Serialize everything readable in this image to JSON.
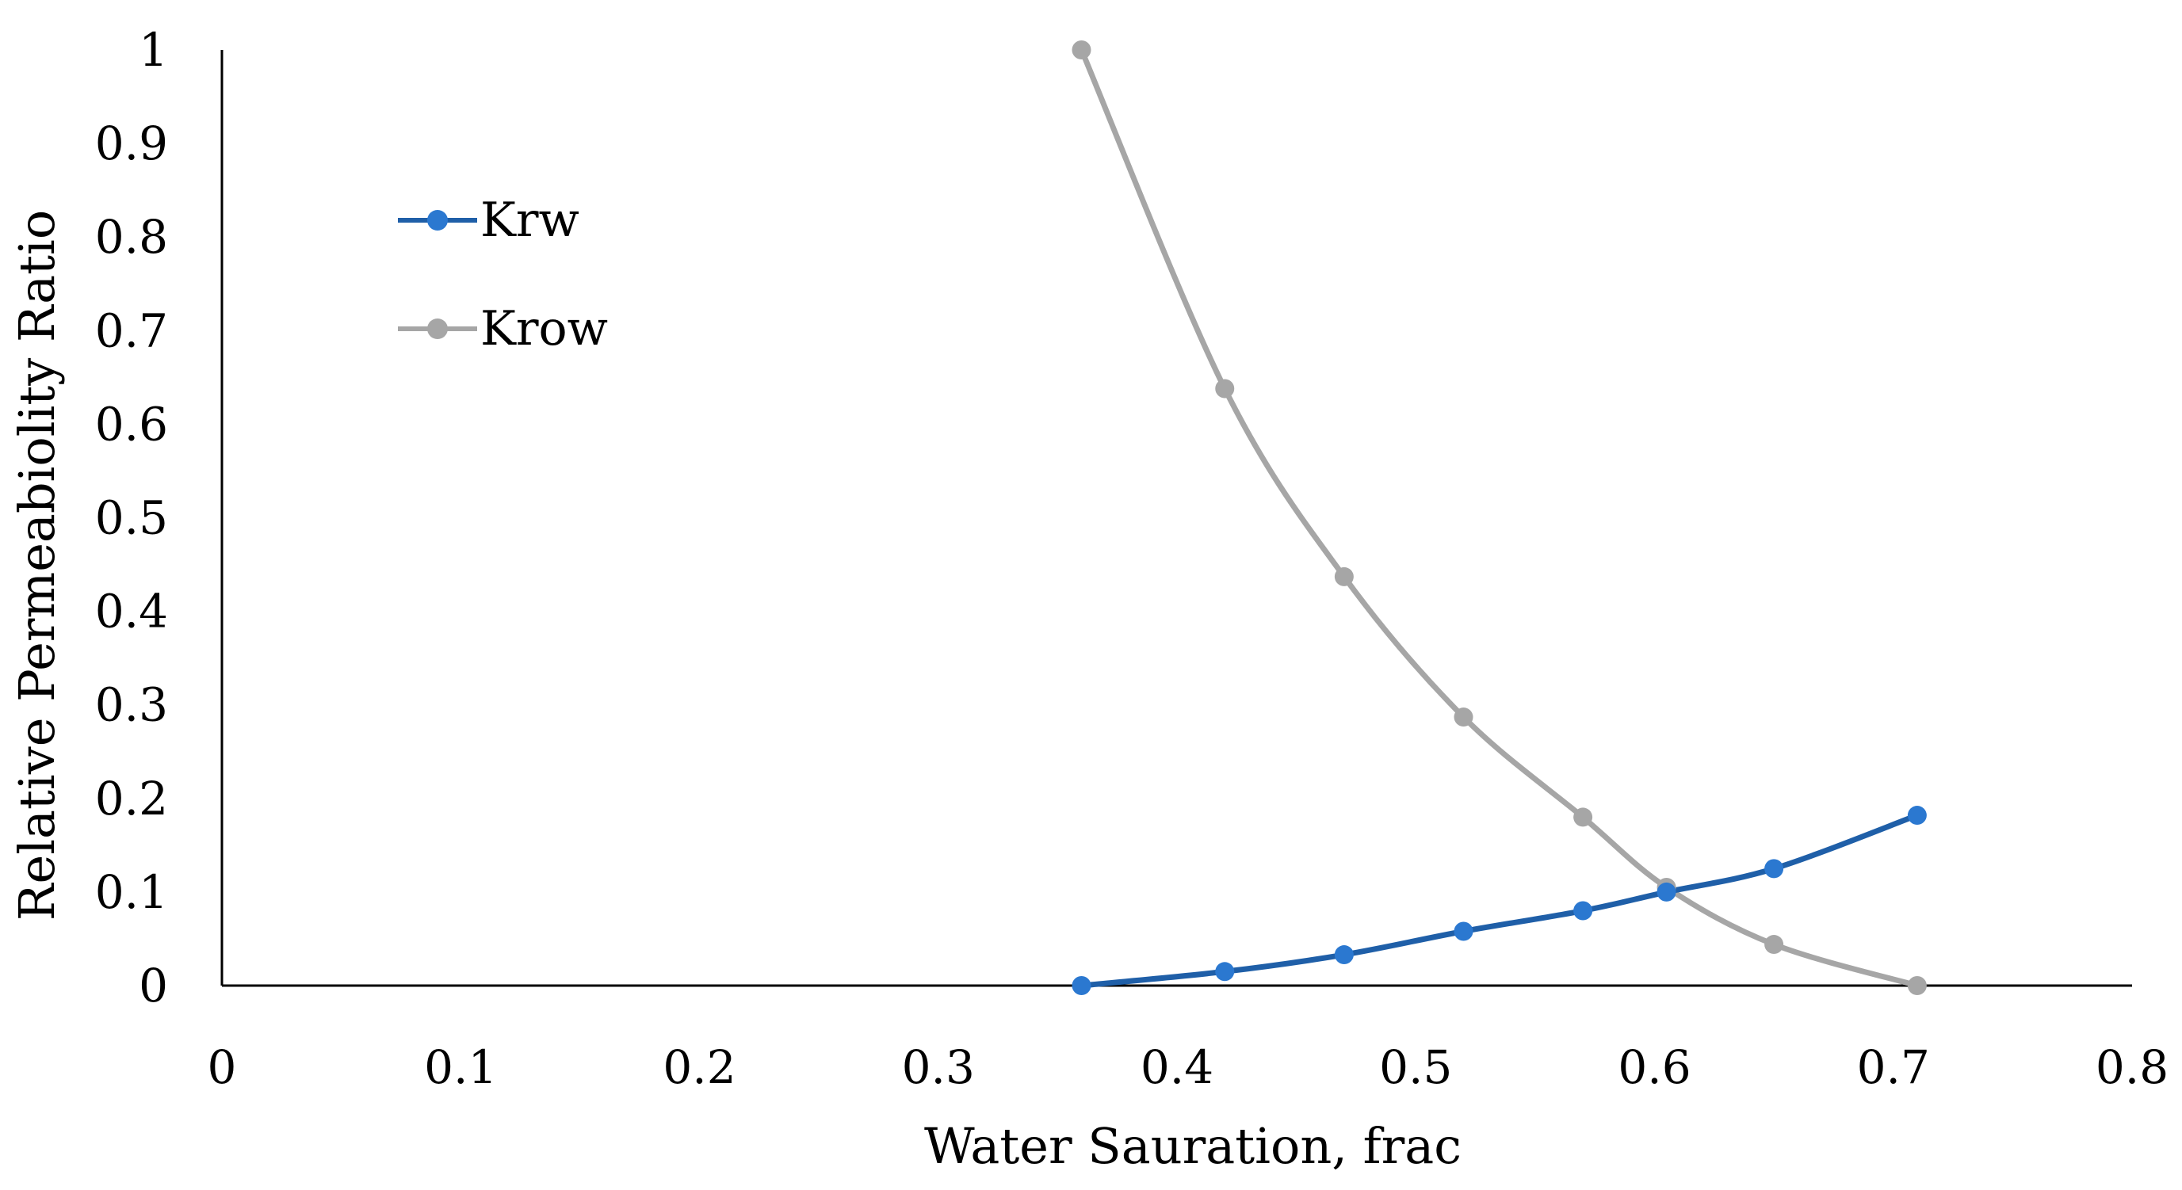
{
  "chart_data": {
    "type": "line",
    "title": "",
    "xlabel": "Water Sauration, frac",
    "ylabel": "Relative Permeabiolity Ratio",
    "xlim": [
      0,
      0.8
    ],
    "ylim": [
      0,
      1
    ],
    "xticks": [
      "0",
      "0.1",
      "0.2",
      "0.3",
      "0.4",
      "0.5",
      "0.6",
      "0.7",
      "0.8"
    ],
    "yticks": [
      "0",
      "0.1",
      "0.2",
      "0.3",
      "0.4",
      "0.5",
      "0.6",
      "0.7",
      "0.8",
      "0.9",
      "1"
    ],
    "grid": false,
    "legend_position": "top-left",
    "smooth": true,
    "series": [
      {
        "name": "Krw",
        "line_color": "#1f5fa8",
        "marker_color": "#2b78d0",
        "x": [
          0.36,
          0.42,
          0.47,
          0.52,
          0.57,
          0.605,
          0.65,
          0.71
        ],
        "y": [
          0,
          0.015,
          0.033,
          0.058,
          0.08,
          0.1,
          0.125,
          0.182
        ]
      },
      {
        "name": "Krow",
        "line_color": "#a6a6a6",
        "marker_color": "#a6a6a6",
        "x": [
          0.36,
          0.42,
          0.47,
          0.52,
          0.57,
          0.605,
          0.65,
          0.71
        ],
        "y": [
          1,
          0.638,
          0.437,
          0.287,
          0.18,
          0.105,
          0.044,
          0
        ]
      }
    ]
  }
}
